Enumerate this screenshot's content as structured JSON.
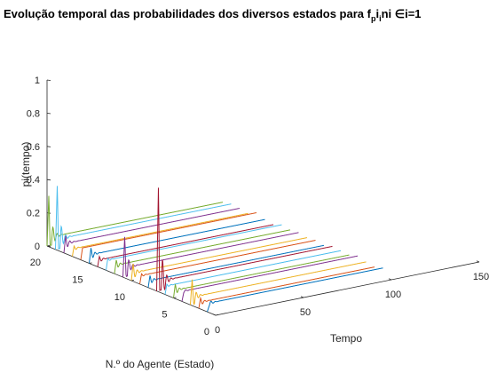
{
  "title": {
    "main": "Evolução temporal das probabilidades dos diversos estados para f",
    "sub1": "p",
    "mid1": "i",
    "sub2": "i",
    "tail": "ni ∈i=1"
  },
  "chart_data": {
    "type": "line",
    "kind": "3d-waterfall",
    "zlabel": "pi(tempo)",
    "xlabel": "Tempo",
    "ylabel": "N.º do Agente (Estado)",
    "xlim": [
      0,
      150
    ],
    "ylim": [
      0,
      20
    ],
    "zlim": [
      0,
      1
    ],
    "xticks": [
      "0",
      "50",
      "100",
      "150"
    ],
    "yticks": [
      "0",
      "5",
      "10",
      "15",
      "20"
    ],
    "zticks": [
      "0",
      "0.2",
      "0.4",
      "0.6",
      "0.8",
      "1"
    ],
    "x_end": 100,
    "series": [
      {
        "agent": 1,
        "color": "#0072bd",
        "peak": 0.03,
        "steady": 0.05
      },
      {
        "agent": 2,
        "color": "#d95319",
        "peak": 0.06,
        "steady": 0.035
      },
      {
        "agent": 3,
        "color": "#edb120",
        "peak": 0.15,
        "steady": 0.045
      },
      {
        "agent": 4,
        "color": "#7e2f8e",
        "peak": 0.05,
        "steady": 0.06
      },
      {
        "agent": 5,
        "color": "#77ac30",
        "peak": 0.08,
        "steady": 0.045
      },
      {
        "agent": 6,
        "color": "#4dbeee",
        "peak": 0.06,
        "steady": 0.05
      },
      {
        "agent": 7,
        "color": "#a2142f",
        "peak": 0.62,
        "steady": 0.055
      },
      {
        "agent": 8,
        "color": "#0072bd",
        "peak": 0.07,
        "steady": 0.04
      },
      {
        "agent": 9,
        "color": "#d95319",
        "peak": 0.06,
        "steady": 0.05
      },
      {
        "agent": 10,
        "color": "#edb120",
        "peak": 0.1,
        "steady": 0.045
      },
      {
        "agent": 11,
        "color": "#7e2f8e",
        "peak": 0.24,
        "steady": 0.055
      },
      {
        "agent": 12,
        "color": "#77ac30",
        "peak": 0.08,
        "steady": 0.05
      },
      {
        "agent": 13,
        "color": "#4dbeee",
        "peak": 0.07,
        "steady": 0.06
      },
      {
        "agent": 14,
        "color": "#a2142f",
        "peak": 0.06,
        "steady": 0.04
      },
      {
        "agent": 15,
        "color": "#0072bd",
        "peak": 0.09,
        "steady": 0.05
      },
      {
        "agent": 16,
        "color": "#d95319",
        "peak": 0.07,
        "steady": 0.07
      },
      {
        "agent": 17,
        "color": "#edb120",
        "peak": 0.06,
        "steady": 0.045
      },
      {
        "agent": 18,
        "color": "#7e2f8e",
        "peak": 0.1,
        "steady": 0.055
      },
      {
        "agent": 19,
        "color": "#4dbeee",
        "peak": 0.38,
        "steady": 0.06
      },
      {
        "agent": 20,
        "color": "#77ac30",
        "peak": 0.3,
        "steady": 0.05
      }
    ]
  }
}
